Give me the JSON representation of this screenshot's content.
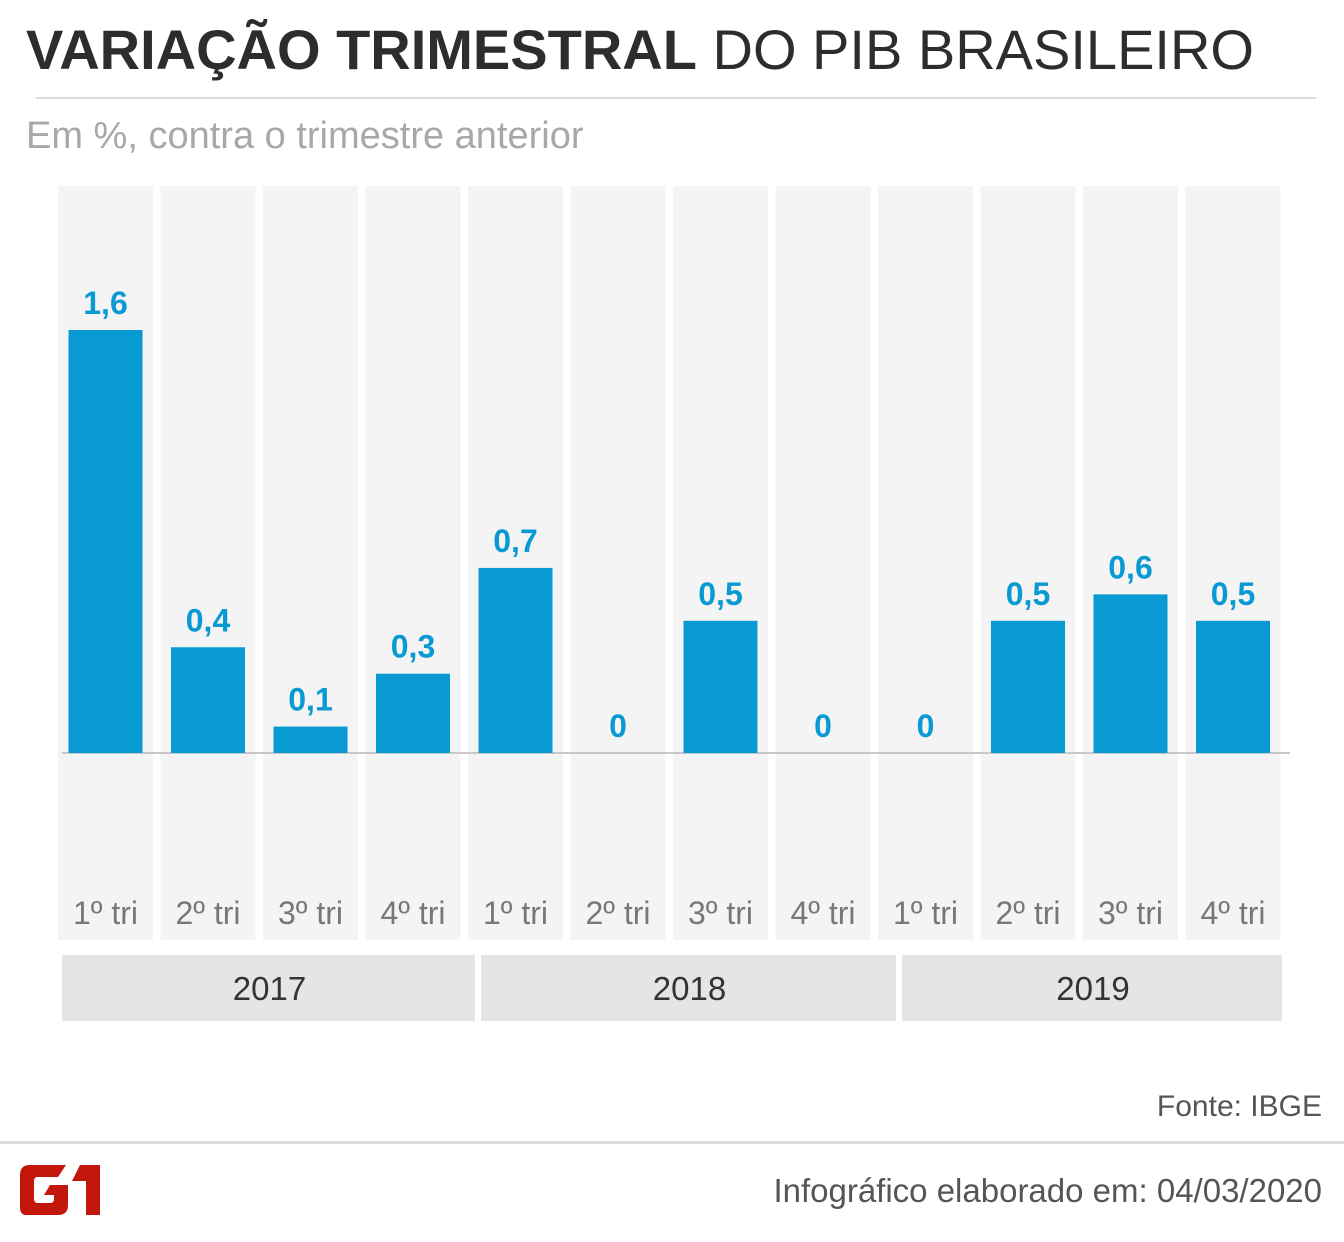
{
  "header": {
    "title_bold": "VARIAÇÃO TRIMESTRAL",
    "title_light": "DO PIB BRASILEIRO",
    "subtitle": "Em %, contra o trimestre anterior"
  },
  "colors": {
    "bar": "#0a9ad3",
    "value_label": "#0a9ad3",
    "column_bg": "#f4f4f4",
    "year_band": "#e5e5e5",
    "axis": "#c8c8c8",
    "tick_text": "#777777",
    "logo": "#c4170c"
  },
  "chart_data": {
    "type": "bar",
    "categories": [
      "1º tri",
      "2º tri",
      "3º tri",
      "4º tri",
      "1º tri",
      "2º tri",
      "3º tri",
      "4º tri",
      "1º tri",
      "2º tri",
      "3º tri",
      "4º tri"
    ],
    "values": [
      1.6,
      0.4,
      0.1,
      0.3,
      0.7,
      0,
      0.5,
      0,
      0,
      0.5,
      0.6,
      0.5
    ],
    "value_labels": [
      "1,6",
      "0,4",
      "0,1",
      "0,3",
      "0,7",
      "0",
      "0,5",
      "0",
      "0",
      "0,5",
      "0,6",
      "0,5"
    ],
    "groups": [
      {
        "label": "2017",
        "count": 4
      },
      {
        "label": "2018",
        "count": 4
      },
      {
        "label": "2019",
        "count": 4
      }
    ],
    "ylim": [
      0,
      1.6
    ],
    "grid": false
  },
  "footer": {
    "source": "Fonte: IBGE",
    "note": "Infográfico elaborado em: 04/03/2020",
    "logo_text": "G1"
  }
}
